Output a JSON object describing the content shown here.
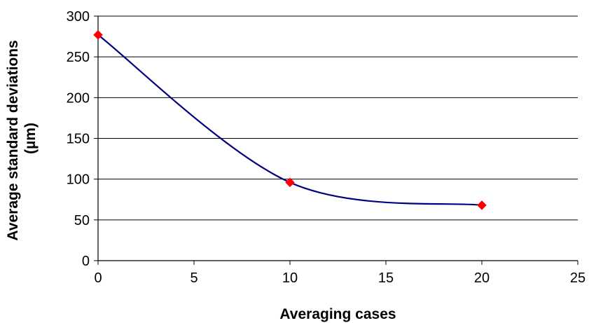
{
  "chart_data": {
    "type": "line",
    "title": "",
    "xlabel": "Averaging cases",
    "ylabel_lines": [
      "Average standard deviations",
      "(µm)"
    ],
    "xlim": [
      0,
      25
    ],
    "ylim": [
      0,
      300
    ],
    "xticks": [
      0,
      5,
      10,
      15,
      20,
      25
    ],
    "yticks": [
      0,
      50,
      100,
      150,
      200,
      250,
      300
    ],
    "xtick_labels": [
      "0",
      "5",
      "10",
      "15",
      "20",
      "25"
    ],
    "ytick_labels": [
      "0",
      "50",
      "100",
      "150",
      "200",
      "250",
      "300"
    ],
    "grid": "horizontal",
    "legend": "none",
    "smooth": true,
    "series": [
      {
        "x": [
          0,
          10,
          20
        ],
        "values": [
          277,
          96,
          68
        ],
        "line_color": "#000080",
        "marker": "diamond",
        "marker_color": "#ff0000"
      }
    ]
  }
}
